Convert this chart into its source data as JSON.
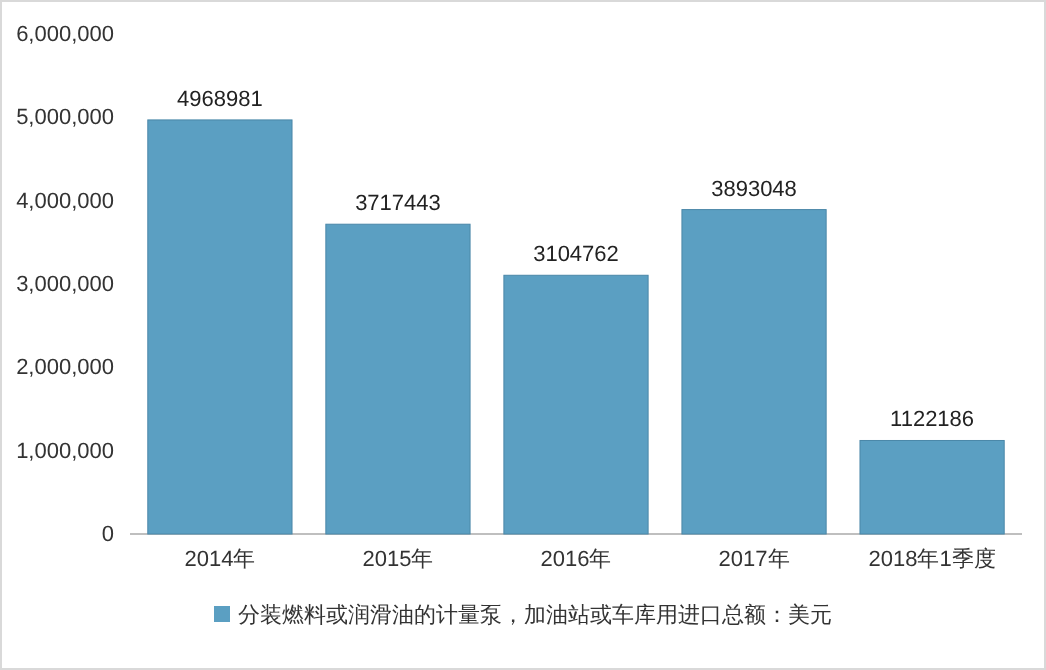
{
  "chart_data": {
    "type": "bar",
    "categories": [
      "2014年",
      "2015年",
      "2016年",
      "2017年",
      "2018年1季度"
    ],
    "series": [
      {
        "name": "分装燃料或润滑油的计量泵，加油站或车库用进口总额：美元",
        "color": "#5b9fc2",
        "values": [
          4968981,
          3717443,
          3104762,
          3893048,
          1122186
        ]
      }
    ],
    "ylim": [
      0,
      6000000
    ],
    "yticks": [
      {
        "value": 0,
        "label": "0"
      },
      {
        "value": 1000000,
        "label": "1,000,000"
      },
      {
        "value": 2000000,
        "label": "2,000,000"
      },
      {
        "value": 3000000,
        "label": "3,000,000"
      },
      {
        "value": 4000000,
        "label": "4,000,000"
      },
      {
        "value": 5000000,
        "label": "5,000,000"
      },
      {
        "value": 6000000,
        "label": "6,000,000"
      }
    ],
    "data_labels": true,
    "legend": "bottom",
    "grid": false
  }
}
